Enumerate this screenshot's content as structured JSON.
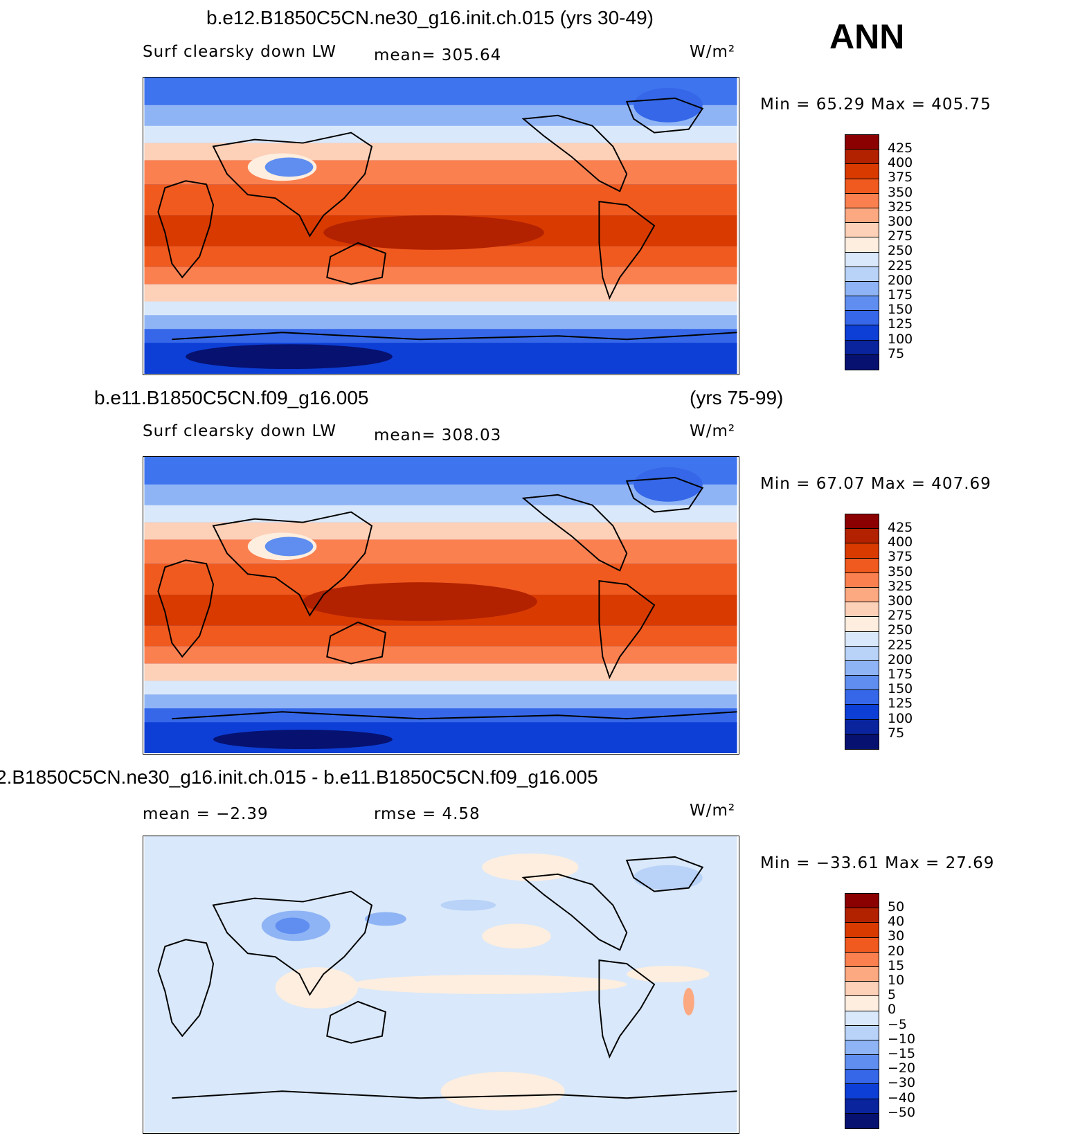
{
  "season": "ANN",
  "panels": [
    {
      "title": "b.e12.B1850C5CN.ne30_g16.init.ch.015 (yrs 30-49)",
      "title_right": "",
      "left": "Surf clearsky down LW",
      "center": "mean= 305.64",
      "units": "W/m²",
      "minmax": "Min =   65.29  Max  =  405.75",
      "kind": "field"
    },
    {
      "title": "b.e11.B1850C5CN.f09_g16.005",
      "title_right": "(yrs 75-99)",
      "left": "Surf clearsky down LW",
      "center": "mean= 308.03",
      "units": "W/m²",
      "minmax": "Min =   67.07  Max  =  407.69",
      "kind": "field"
    },
    {
      "title": "2.B1850C5CN.ne30_g16.init.ch.015 - b.e11.B1850C5CN.f09_g16.005",
      "title_right": "",
      "left": "mean =   −2.39",
      "center": "rmse =    4.58",
      "units": "W/m²",
      "minmax": "Min = −33.61  Max =   27.69",
      "kind": "diff"
    }
  ],
  "colorbars": {
    "field": {
      "labels": [
        "425",
        "400",
        "375",
        "350",
        "325",
        "300",
        "275",
        "250",
        "225",
        "200",
        "175",
        "150",
        "125",
        "100",
        "75"
      ],
      "colors": [
        "#8b0000",
        "#b22200",
        "#d83a00",
        "#f05a1f",
        "#fb8050",
        "#fca982",
        "#fdd0b8",
        "#fdeedf",
        "#d9e8fa",
        "#b8d2f8",
        "#8fb4f5",
        "#5f8ef0",
        "#3567e8",
        "#0d3fd6",
        "#0a249e",
        "#061170"
      ]
    },
    "diff": {
      "labels": [
        "50",
        "40",
        "30",
        "20",
        "15",
        "10",
        "5",
        "0",
        "−5",
        "−10",
        "−15",
        "−20",
        "−30",
        "−40",
        "−50"
      ],
      "colors": [
        "#8b0000",
        "#b22200",
        "#d83a00",
        "#f05a1f",
        "#fb8050",
        "#fca982",
        "#fdd0b8",
        "#fdeedf",
        "#d9e8fa",
        "#b8d2f8",
        "#8fb4f5",
        "#5f8ef0",
        "#3567e8",
        "#0d3fd6",
        "#0a249e",
        "#061170"
      ]
    }
  }
}
